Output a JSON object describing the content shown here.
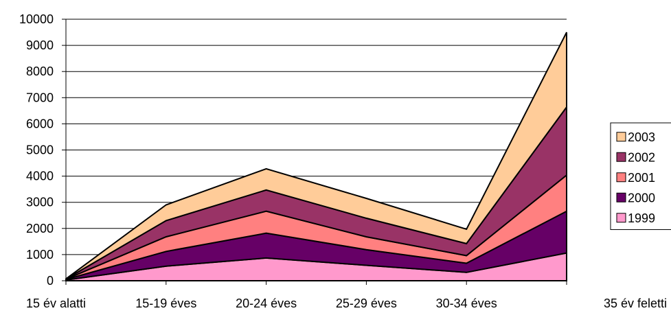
{
  "chart_data": {
    "type": "area",
    "stacked": true,
    "categories": [
      "15 év alatti",
      "15-19 éves",
      "20-24 éves",
      "25-29 éves",
      "30-34 éves",
      "35 év feletti"
    ],
    "series": [
      {
        "name": "1999",
        "values": [
          30,
          560,
          870,
          590,
          320,
          1060
        ],
        "color": "#ff99cc"
      },
      {
        "name": "2000",
        "values": [
          20,
          560,
          950,
          600,
          350,
          1600
        ],
        "color": "#660066"
      },
      {
        "name": "2001",
        "values": [
          10,
          560,
          840,
          490,
          290,
          1380
        ],
        "color": "#ff8080"
      },
      {
        "name": "2002",
        "values": [
          5,
          620,
          810,
          710,
          460,
          2600
        ],
        "color": "#993366"
      },
      {
        "name": "2003",
        "values": [
          5,
          600,
          810,
          760,
          550,
          2860
        ],
        "color": "#ffcc99"
      }
    ],
    "ylim": [
      0,
      10000
    ],
    "yticks": [
      "0",
      "1000",
      "2000",
      "3000",
      "4000",
      "5000",
      "6000",
      "7000",
      "8000",
      "9000",
      "10000"
    ],
    "grid": true,
    "legend_position": "right",
    "title": "",
    "xlabel": "",
    "ylabel": ""
  }
}
